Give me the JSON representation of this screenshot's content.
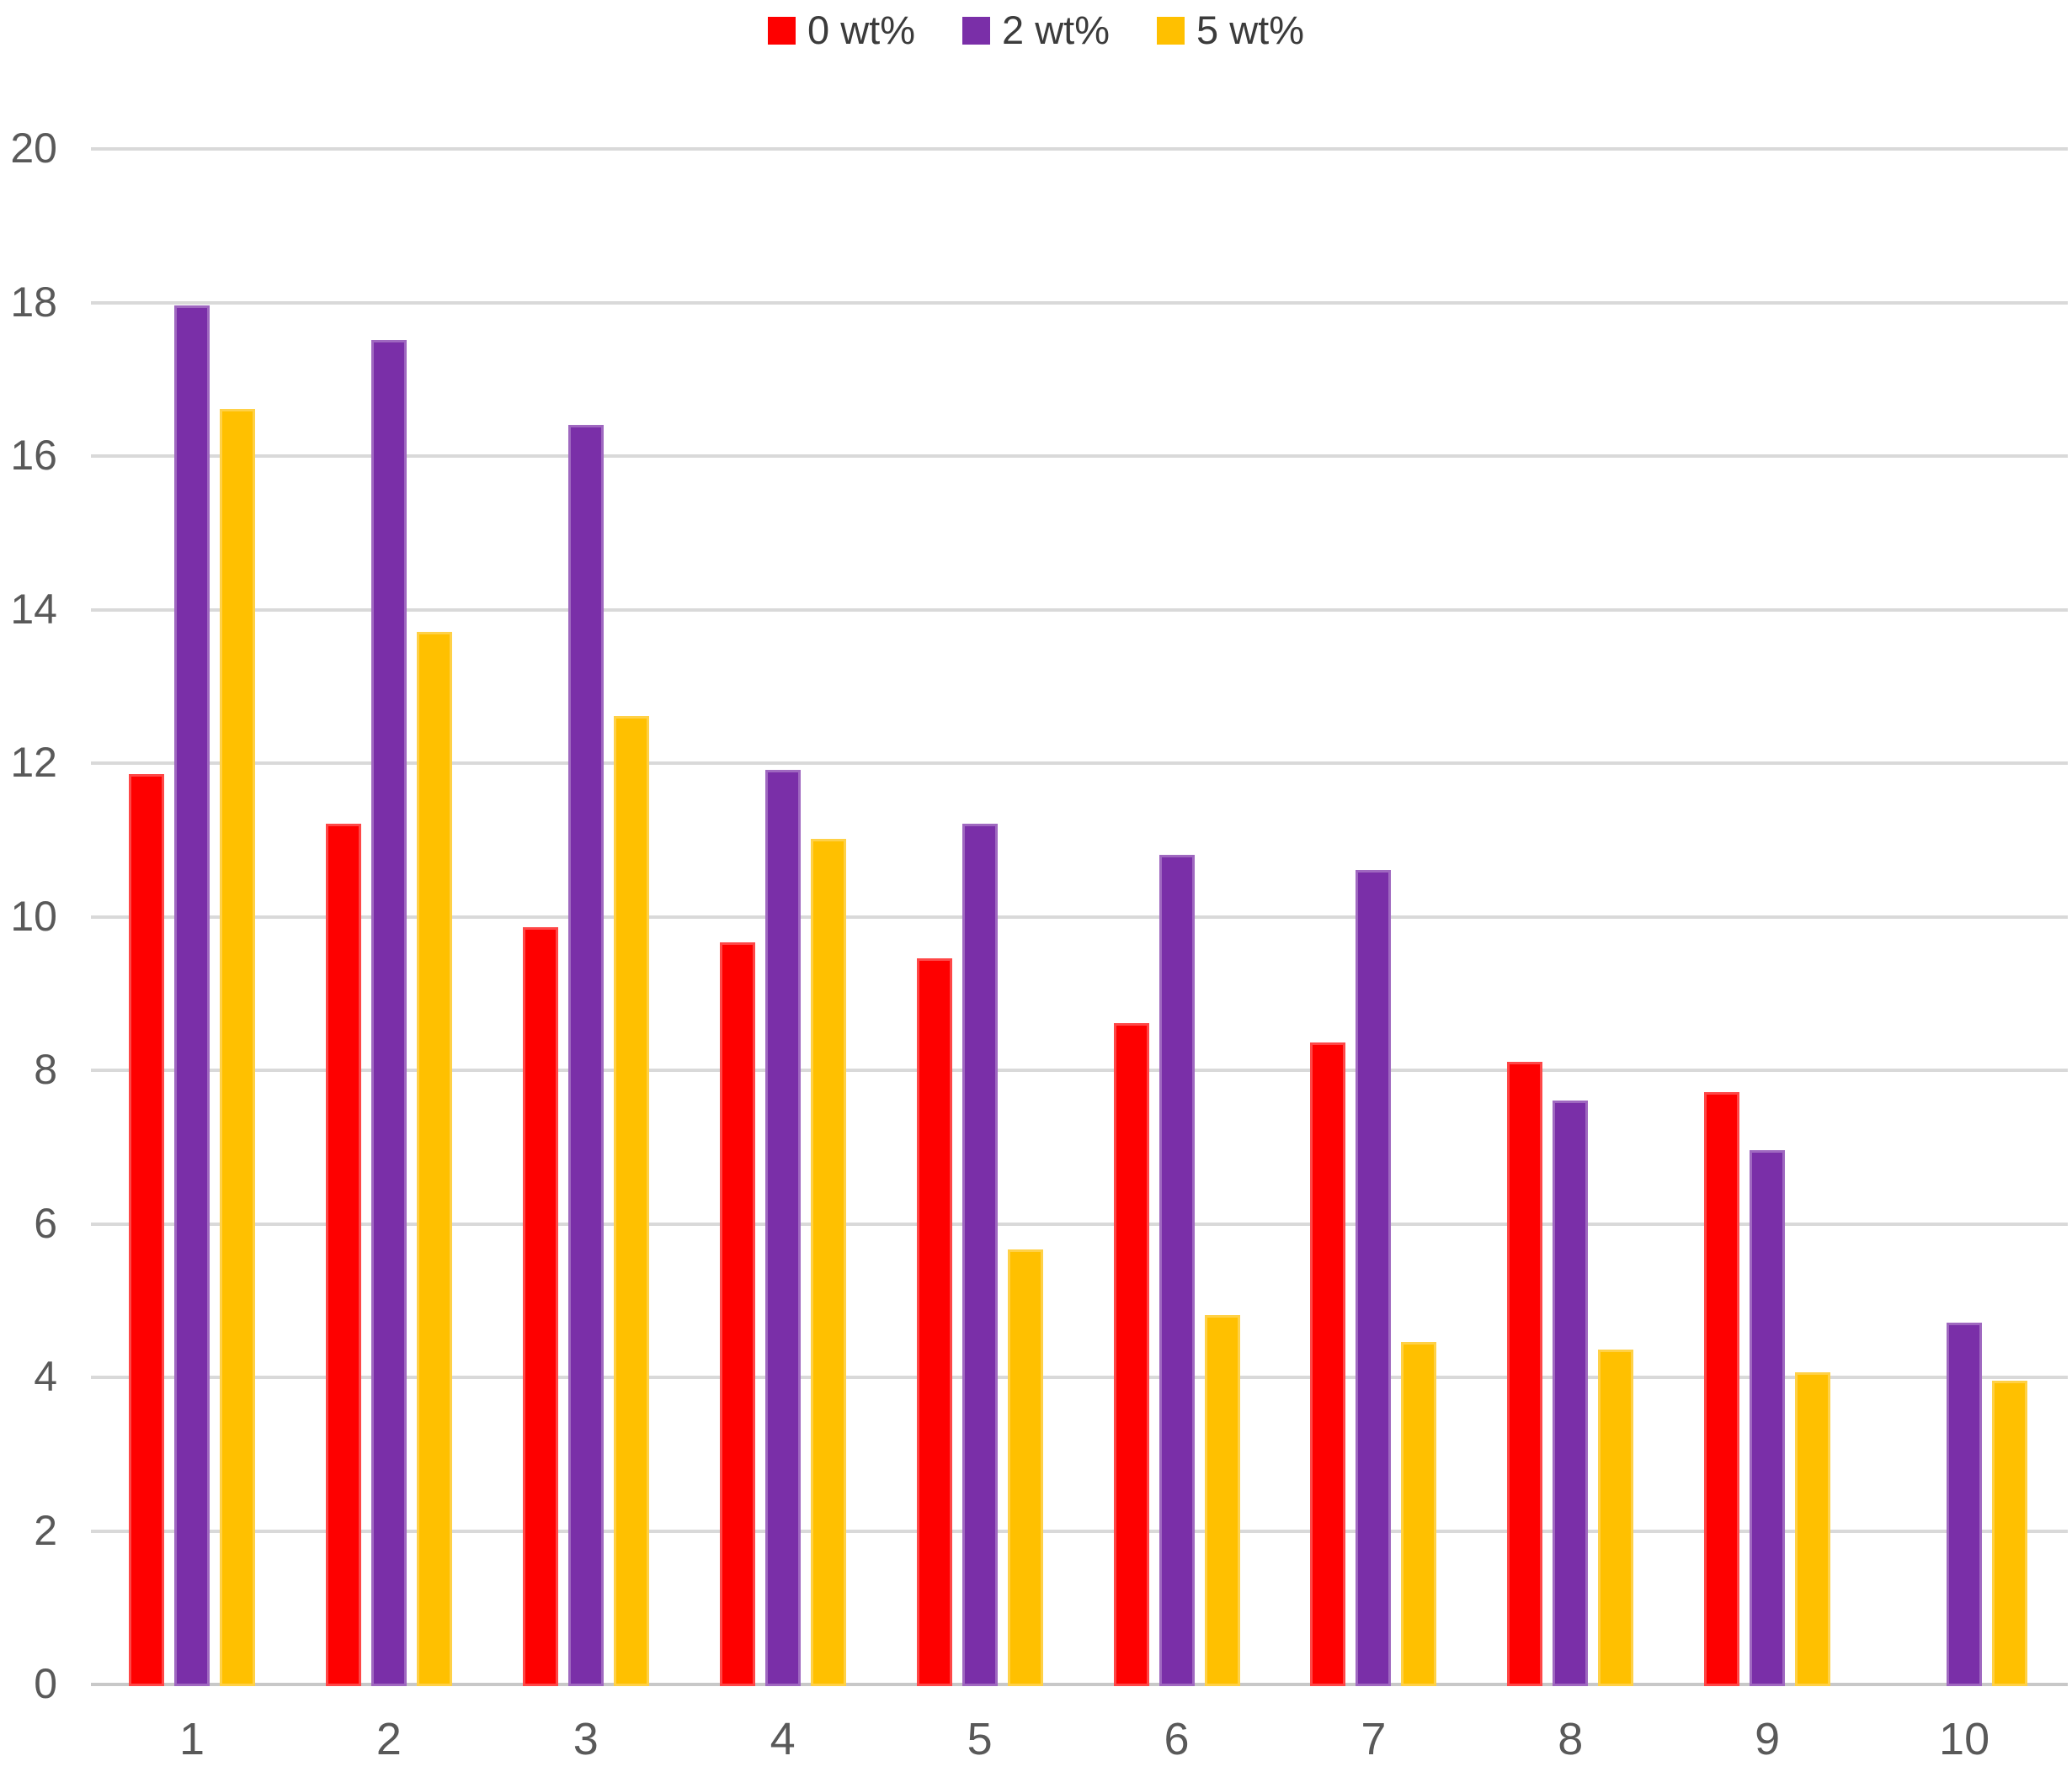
{
  "chart_data": {
    "type": "bar",
    "title": "",
    "xlabel": "",
    "ylabel": "",
    "categories": [
      "1",
      "2",
      "3",
      "4",
      "5",
      "6",
      "7",
      "8",
      "9",
      "10"
    ],
    "series": [
      {
        "name": "0 wt%",
        "color": "#FE0000",
        "values": [
          11.85,
          11.2,
          9.85,
          9.65,
          9.45,
          8.6,
          8.35,
          8.1,
          7.7,
          null
        ]
      },
      {
        "name": "2 wt%",
        "color": "#7A2FA8",
        "values": [
          17.95,
          17.5,
          16.4,
          11.9,
          11.2,
          10.8,
          10.6,
          7.6,
          6.95,
          4.7
        ]
      },
      {
        "name": "5 wt%",
        "color": "#FFC000",
        "values": [
          16.6,
          13.7,
          12.6,
          11.0,
          5.65,
          4.8,
          4.45,
          4.35,
          4.05,
          3.95
        ]
      }
    ],
    "ylim": [
      0,
      20
    ],
    "y_ticks": [
      0,
      2,
      4,
      6,
      8,
      10,
      12,
      14,
      16,
      18,
      20
    ],
    "grid": true,
    "legend_position": "top-center",
    "background_color": "#FFFFFF",
    "gridline_color": "#D9D9D9",
    "axisline_color": "#C8C8C8",
    "axis_text_color": "#595959",
    "legend_text_color": "#3B3B3B"
  }
}
